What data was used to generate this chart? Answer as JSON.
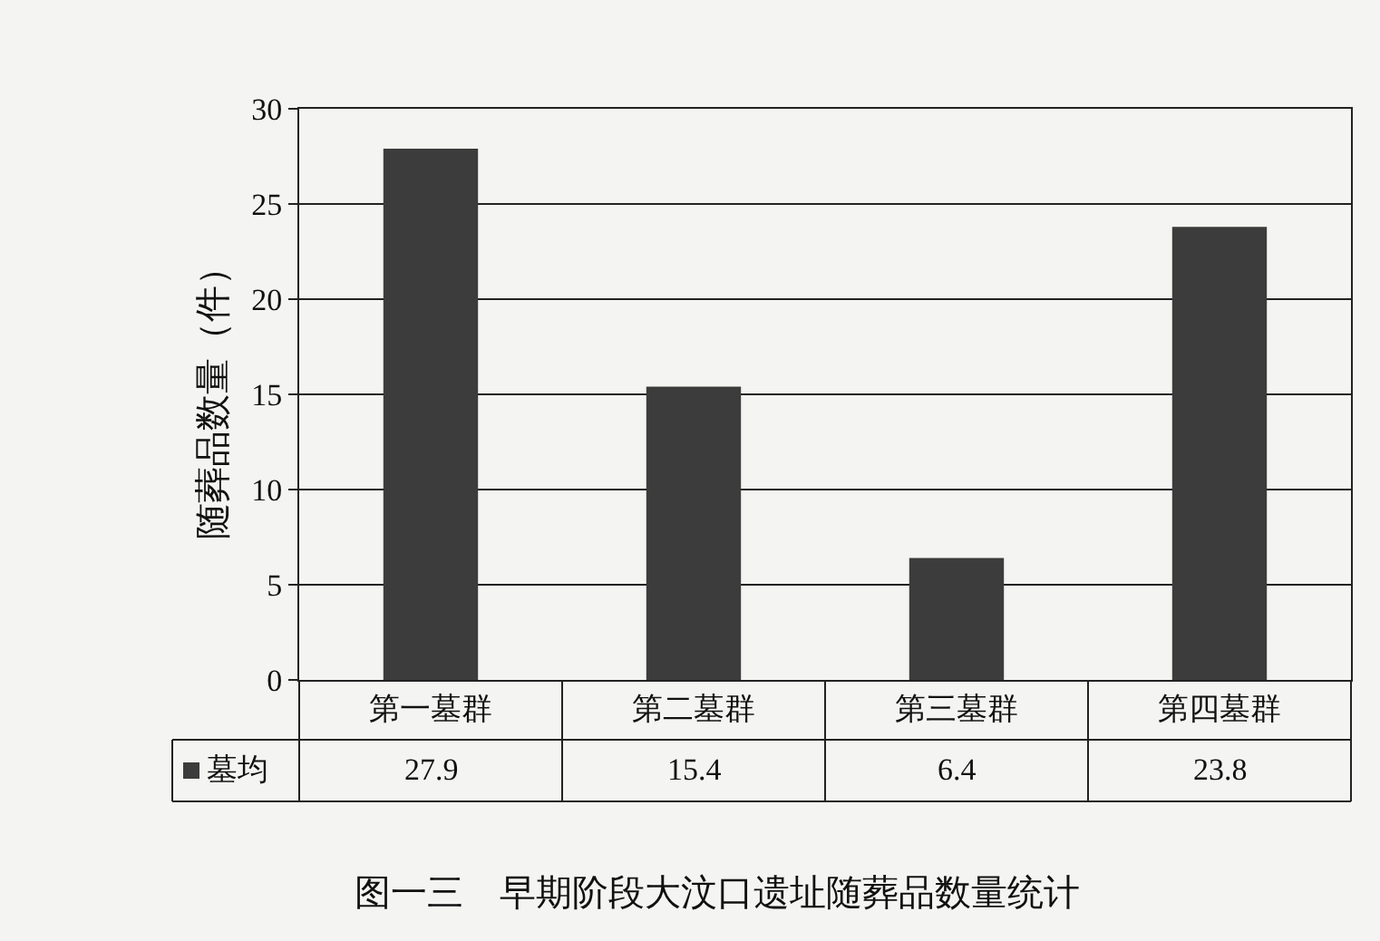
{
  "chart_data": {
    "type": "bar",
    "title": "图一三　早期阶段大汶口遗址随葬品数量统计",
    "ylabel": "随葬品数量（件）",
    "categories": [
      "第一墓群",
      "第二墓群",
      "第三墓群",
      "第四墓群"
    ],
    "series": [
      {
        "name": "墓均",
        "color": "#3c3c3c",
        "values": [
          27.9,
          15.4,
          6.4,
          23.8
        ]
      }
    ],
    "ylim": [
      0,
      30
    ],
    "yticks": [
      0,
      5,
      10,
      15,
      20,
      25,
      30
    ],
    "grid": "y",
    "data_labels": true,
    "legend": "bottom"
  }
}
